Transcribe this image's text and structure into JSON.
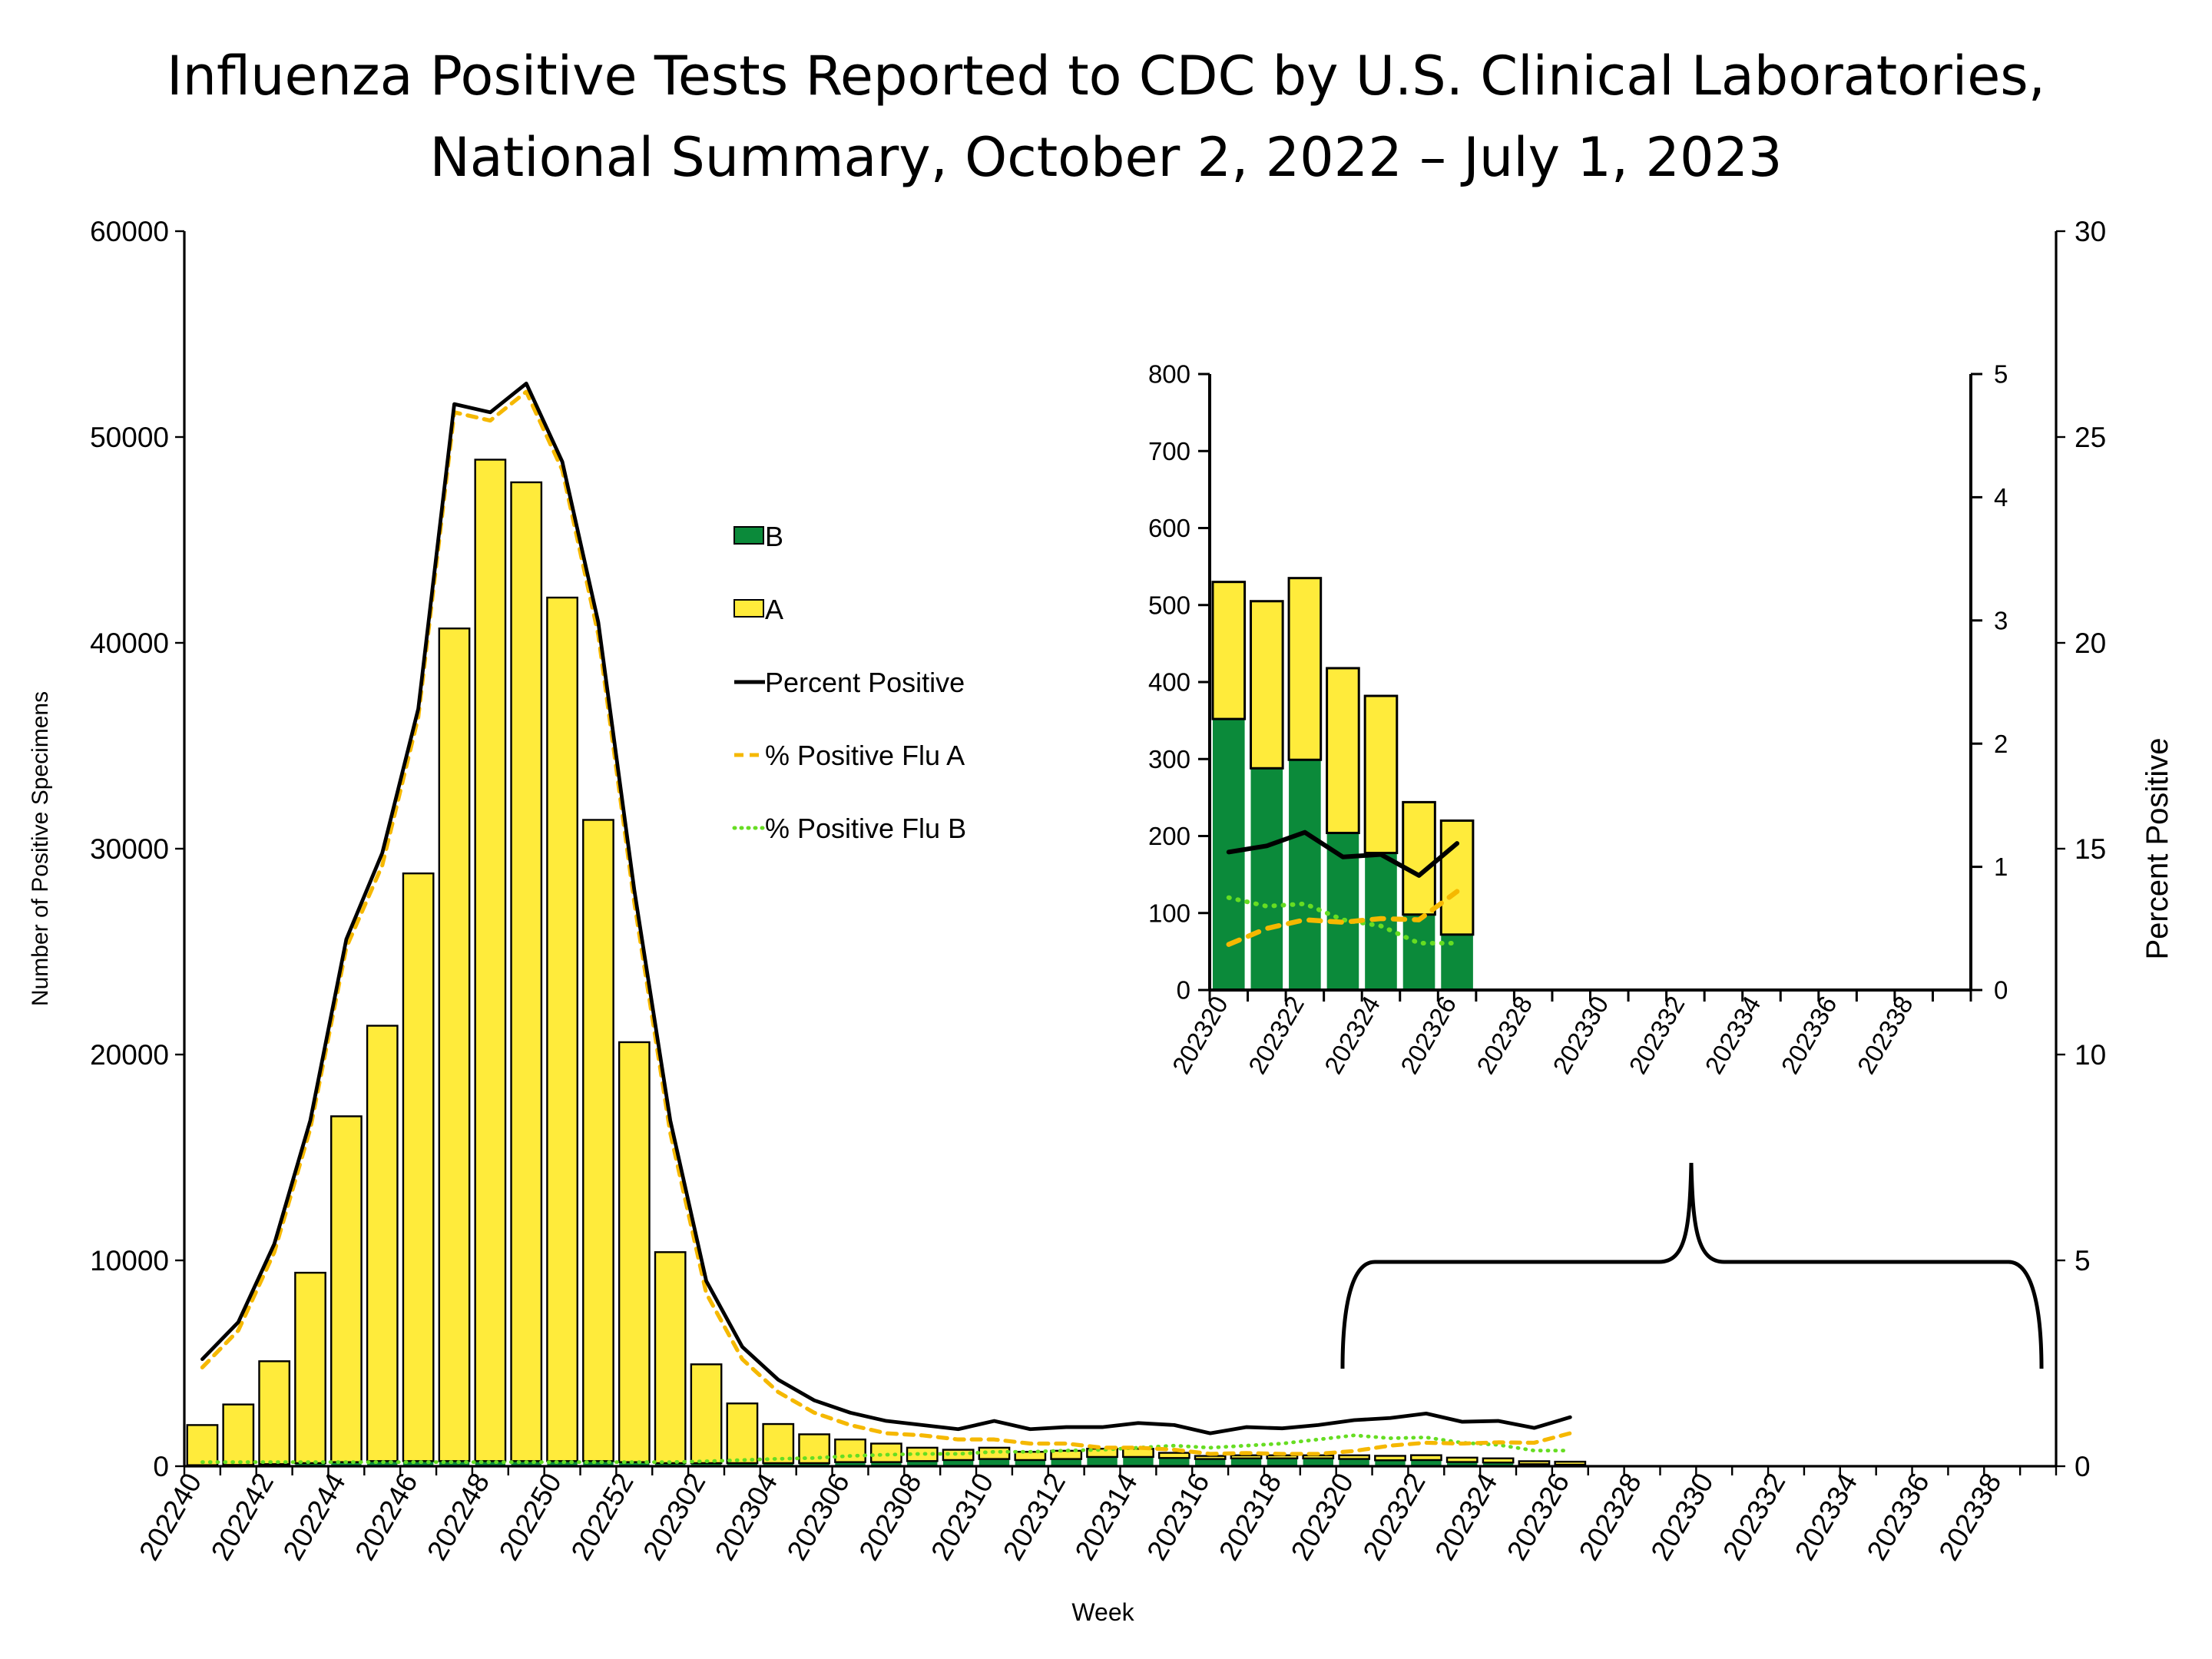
{
  "chart_data": {
    "type": "bar",
    "title_line1": "Influenza Positive Tests Reported to CDC by U.S. Clinical Laboratories,",
    "title_line2": "National Summary, October 2, 2022 – July 1, 2023",
    "xlabel": "Week",
    "ylabel": "Number of Positive Specimens",
    "y2label": "Percent Positive",
    "ylim": [
      0,
      60000
    ],
    "y2lim": [
      0,
      30
    ],
    "yticks": [
      0,
      10000,
      20000,
      30000,
      40000,
      50000,
      60000
    ],
    "y2ticks": [
      0,
      5,
      10,
      15,
      20,
      25,
      30
    ],
    "stacked": true,
    "legend": [
      "B",
      "A",
      "Percent Positive",
      "% Positive Flu A",
      "% Positive Flu B"
    ],
    "legend_placement": "center",
    "colors": {
      "A": "#ffeb3b",
      "B": "#0b8a3a",
      "percent": "#000000",
      "flu_a": "#f5b800",
      "flu_b": "#66dd22"
    },
    "x_all": [
      "202240",
      "202241",
      "202242",
      "202243",
      "202244",
      "202245",
      "202246",
      "202247",
      "202248",
      "202249",
      "202250",
      "202251",
      "202252",
      "202301",
      "202302",
      "202303",
      "202304",
      "202305",
      "202306",
      "202307",
      "202308",
      "202309",
      "202310",
      "202311",
      "202312",
      "202313",
      "202314",
      "202315",
      "202316",
      "202317",
      "202318",
      "202319",
      "202320",
      "202321",
      "202322",
      "202323",
      "202324",
      "202325",
      "202326",
      "202327",
      "202328",
      "202329",
      "202330",
      "202331",
      "202332",
      "202333",
      "202334",
      "202335",
      "202336",
      "202337",
      "202338",
      "202339"
    ],
    "series": [
      {
        "name": "B",
        "values": [
          50,
          60,
          100,
          150,
          200,
          250,
          250,
          250,
          250,
          250,
          250,
          250,
          200,
          150,
          150,
          150,
          150,
          150,
          200,
          200,
          250,
          300,
          350,
          300,
          350,
          450,
          450,
          400,
          350,
          380,
          380,
          380,
          352,
          288,
          299,
          204,
          178,
          98,
          72
        ]
      },
      {
        "name": "A",
        "values": [
          1950,
          2940,
          5000,
          9250,
          16800,
          21150,
          28550,
          40450,
          48650,
          47550,
          41950,
          31150,
          20400,
          10250,
          4800,
          2900,
          1900,
          1400,
          1100,
          900,
          650,
          500,
          550,
          400,
          400,
          400,
          400,
          250,
          150,
          150,
          150,
          150,
          178,
          217,
          236,
          214,
          204,
          146,
          148
        ]
      },
      {
        "name": "Percent Positive",
        "axis": "right",
        "values": [
          2.6,
          3.5,
          5.4,
          8.4,
          12.8,
          14.9,
          18.4,
          25.8,
          25.6,
          26.3,
          24.4,
          20.5,
          14.0,
          8.4,
          4.5,
          2.9,
          2.1,
          1.6,
          1.3,
          1.1,
          1.0,
          0.9,
          1.1,
          0.9,
          0.95,
          0.95,
          1.05,
          1.0,
          0.8,
          0.95,
          0.92,
          1.0,
          1.12,
          1.17,
          1.28,
          1.08,
          1.1,
          0.93,
          1.19
        ]
      },
      {
        "name": "% Positive Flu A",
        "axis": "right",
        "values": [
          2.4,
          3.3,
          5.2,
          8.2,
          12.6,
          14.6,
          18.2,
          25.6,
          25.4,
          26.1,
          24.2,
          20.2,
          13.7,
          8.1,
          4.2,
          2.6,
          1.8,
          1.3,
          1.0,
          0.8,
          0.75,
          0.65,
          0.65,
          0.55,
          0.55,
          0.45,
          0.45,
          0.4,
          0.3,
          0.32,
          0.3,
          0.3,
          0.37,
          0.5,
          0.57,
          0.55,
          0.58,
          0.57,
          0.8
        ]
      },
      {
        "name": "% Positive Flu B",
        "axis": "right",
        "values": [
          0.1,
          0.1,
          0.1,
          0.1,
          0.1,
          0.1,
          0.1,
          0.1,
          0.1,
          0.1,
          0.1,
          0.1,
          0.1,
          0.1,
          0.12,
          0.15,
          0.18,
          0.2,
          0.25,
          0.28,
          0.3,
          0.3,
          0.35,
          0.35,
          0.38,
          0.4,
          0.45,
          0.5,
          0.45,
          0.5,
          0.55,
          0.65,
          0.75,
          0.68,
          0.7,
          0.57,
          0.52,
          0.38,
          0.38
        ]
      }
    ],
    "inset": {
      "x_all": [
        "202320",
        "202321",
        "202322",
        "202323",
        "202324",
        "202325",
        "202326",
        "202327",
        "202328",
        "202329",
        "202330",
        "202331",
        "202332",
        "202333",
        "202334",
        "202335",
        "202336",
        "202337",
        "202338",
        "202339"
      ],
      "ylim": [
        0,
        800
      ],
      "y2lim": [
        0,
        5
      ],
      "yticks": [
        0,
        100,
        200,
        300,
        400,
        500,
        600,
        700,
        800
      ],
      "y2ticks": [
        0,
        1,
        2,
        3,
        4,
        5
      ],
      "B": [
        352,
        288,
        299,
        204,
        178,
        98,
        72
      ],
      "A": [
        178,
        217,
        236,
        214,
        204,
        146,
        148
      ],
      "percent_positive": [
        1.12,
        1.17,
        1.28,
        1.08,
        1.1,
        0.93,
        1.19
      ],
      "flu_a": [
        0.37,
        0.5,
        0.57,
        0.55,
        0.58,
        0.57,
        0.8
      ],
      "flu_b": [
        0.75,
        0.68,
        0.7,
        0.57,
        0.52,
        0.38,
        0.38
      ]
    }
  }
}
